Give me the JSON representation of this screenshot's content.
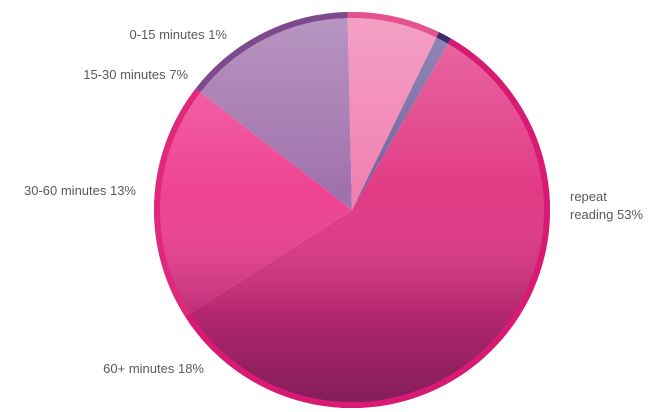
{
  "chart_data": {
    "type": "pie",
    "start_angle_deg": -60,
    "direction": "clockwise",
    "slices": [
      {
        "label": "repeat reading 53%",
        "label_lines": [
          "repeat",
          "reading 53%"
        ],
        "value": 53,
        "color": "#e0307f",
        "edge": "#d91a73"
      },
      {
        "label": "60+ minutes 18%",
        "label_lines": [
          "60+ minutes 18%"
        ],
        "value": 18,
        "color": "#ee3a8d",
        "edge": "#e0287c"
      },
      {
        "label": "30-60 minutes 13%",
        "label_lines": [
          "30-60 minutes 13%"
        ],
        "value": 13,
        "color": "#9b6aa8",
        "edge": "#7d4a8d"
      },
      {
        "label": "15-30 minutes 7%",
        "label_lines": [
          "15-30 minutes 7%"
        ],
        "value": 7,
        "color": "#f07aad",
        "edge": "#e4528f"
      },
      {
        "label": "0-15 minutes 1%",
        "label_lines": [
          "0-15 minutes 1%"
        ],
        "value": 1,
        "color": "#6b5a9a",
        "edge": "#3f2d6b"
      }
    ]
  }
}
